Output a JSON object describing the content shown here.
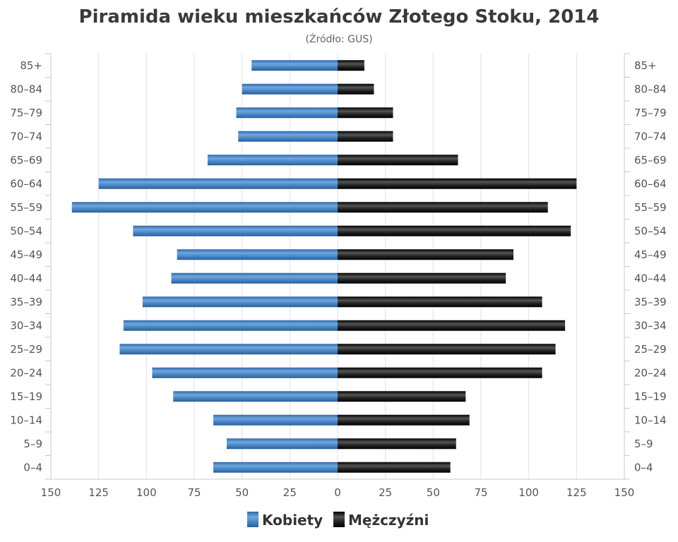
{
  "chart_data": {
    "type": "bar",
    "orientation": "horizontal-pyramid",
    "title": "Piramida wieku mieszkańców Złotego Stoku, 2014",
    "subtitle": "(Źródło: GUS)",
    "categories": [
      "85+",
      "80–84",
      "75–79",
      "70–74",
      "65–69",
      "60–64",
      "55–59",
      "50–54",
      "45–49",
      "40–44",
      "35–39",
      "30–34",
      "25–29",
      "20–24",
      "15–19",
      "10–14",
      "5–9",
      "0–4"
    ],
    "series": [
      {
        "name": "Kobiety",
        "color": "#4a86c5",
        "side": "left",
        "values": [
          45,
          50,
          53,
          52,
          68,
          125,
          139,
          107,
          84,
          87,
          102,
          112,
          114,
          97,
          86,
          65,
          58,
          65
        ]
      },
      {
        "name": "Mężczyźni",
        "color": "#1a1a1a",
        "side": "right",
        "values": [
          14,
          19,
          29,
          29,
          63,
          125,
          110,
          122,
          92,
          88,
          107,
          119,
          114,
          107,
          67,
          69,
          62,
          59
        ]
      }
    ],
    "x_ticks": [
      "150",
      "125",
      "100",
      "75",
      "50",
      "25",
      "0",
      "25",
      "50",
      "75",
      "100",
      "125",
      "150"
    ],
    "xlim": [
      -150,
      150
    ],
    "grid": true,
    "legend_position": "bottom-center"
  }
}
